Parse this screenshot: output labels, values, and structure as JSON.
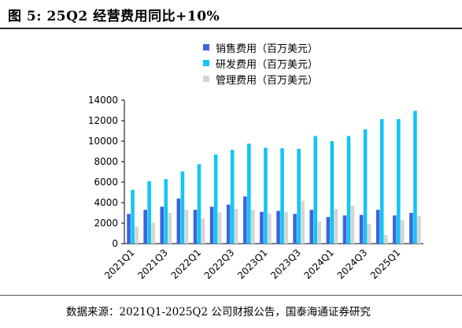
{
  "header": {
    "title": "图 5:  25Q2 经营费用同比+10%"
  },
  "source": "数据来源：2021Q1-2025Q2 公司财报公告，国泰海通证券研究",
  "colors": {
    "sales": "#3a65e0",
    "rd": "#14c5f5",
    "admin": "#d5d5d5"
  },
  "chart_data": {
    "type": "bar",
    "categories": [
      "2021Q1",
      "2021Q2",
      "2021Q3",
      "2021Q4",
      "2022Q1",
      "2022Q2",
      "2022Q3",
      "2022Q4",
      "2023Q1",
      "2023Q2",
      "2023Q3",
      "2023Q4",
      "2024Q1",
      "2024Q2",
      "2024Q3",
      "2024Q4",
      "2025Q1",
      "2025Q2"
    ],
    "tick_labels": [
      "2021Q1",
      "2021Q3",
      "2022Q1",
      "2022Q3",
      "2023Q1",
      "2023Q3",
      "2024Q1",
      "2024Q3",
      "2025Q1"
    ],
    "series": [
      {
        "name": "销售费用（百万美元）",
        "values": [
          2900,
          3300,
          3600,
          4400,
          3300,
          3600,
          3800,
          4600,
          3100,
          3200,
          2900,
          3300,
          2600,
          2750,
          2800,
          3300,
          2750,
          3000
        ]
      },
      {
        "name": "研发费用（百万美元）",
        "values": [
          5250,
          6100,
          6300,
          7050,
          7750,
          8700,
          9150,
          9750,
          9350,
          9300,
          9250,
          10500,
          10000,
          10500,
          11150,
          12150,
          12150,
          12950
        ]
      },
      {
        "name": "管理费用（百万美元）",
        "values": [
          1650,
          2050,
          3000,
          3300,
          2450,
          3050,
          3400,
          3300,
          2950,
          3100,
          4200,
          2150,
          3400,
          3700,
          1950,
          850,
          2300,
          2700
        ]
      }
    ],
    "ylim": [
      0,
      14000
    ],
    "yticks": [
      0,
      2000,
      4000,
      6000,
      8000,
      10000,
      12000,
      14000
    ],
    "legend_position": "top",
    "grid": false
  }
}
